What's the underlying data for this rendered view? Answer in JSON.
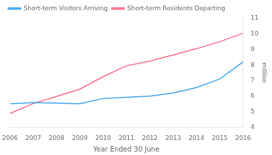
{
  "chart_data": {
    "type": "line",
    "x": [
      2006,
      2007,
      2008,
      2009,
      2010,
      2011,
      2012,
      2013,
      2014,
      2015,
      2016
    ],
    "series": [
      {
        "name": "Short-term Visitors Arriving",
        "values": [
          5.5,
          5.58,
          5.55,
          5.5,
          5.85,
          5.92,
          6.0,
          6.2,
          6.55,
          7.1,
          8.2
        ]
      },
      {
        "name": "Short-term Residents Departing",
        "values": [
          4.88,
          5.52,
          5.98,
          6.45,
          7.25,
          7.95,
          8.25,
          8.65,
          9.05,
          9.5,
          10.05
        ]
      }
    ],
    "xlabel": "Year Ended 30 June",
    "ylabel": "million",
    "xlim": [
      2006,
      2016
    ],
    "xticks": [
      2006,
      2007,
      2008,
      2009,
      2010,
      2011,
      2012,
      2013,
      2014,
      2015,
      2016
    ],
    "ylim": [
      4,
      11
    ],
    "yticks": [
      4,
      5,
      6,
      7,
      8,
      9,
      10,
      11
    ],
    "grid": false,
    "legend": "upper left"
  }
}
